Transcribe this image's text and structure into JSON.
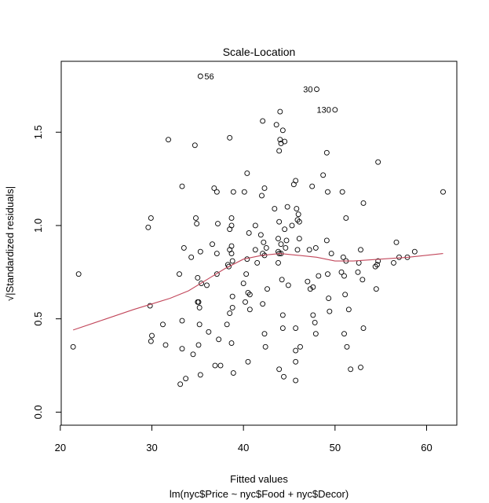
{
  "chart_data": {
    "type": "scatter",
    "title": "Scale-Location",
    "xlabel": "Fitted values",
    "subtitle": "lm(nyc$Price ~ nyc$Food + nyc$Decor)",
    "ylabel": "√|Standardized residuals|",
    "xlim": [
      20.1,
      63.3
    ],
    "ylim": [
      -0.07,
      1.88
    ],
    "x_ticks": [
      20,
      30,
      40,
      50,
      60
    ],
    "y_ticks": [
      0.0,
      0.5,
      1.0,
      1.5
    ],
    "x_tick_labels": [
      "20",
      "30",
      "40",
      "50",
      "60"
    ],
    "y_tick_labels": [
      "0.0",
      "0.5",
      "1.0",
      "1.5"
    ],
    "grid": false,
    "colors": {
      "points": "#000000",
      "smooth": "#c2475b",
      "frame": "#000000"
    },
    "labeled_points": [
      {
        "label": "56",
        "x": 35.3,
        "y": 1.8
      },
      {
        "label": "30",
        "x": 48.0,
        "y": 1.73
      },
      {
        "label": "130",
        "x": 50.0,
        "y": 1.62
      }
    ],
    "points": [
      [
        21.4,
        0.35
      ],
      [
        22.0,
        0.74
      ],
      [
        29.6,
        0.99
      ],
      [
        29.9,
        1.04
      ],
      [
        29.8,
        0.57
      ],
      [
        29.9,
        0.38
      ],
      [
        30.0,
        0.41
      ],
      [
        31.2,
        0.47
      ],
      [
        31.5,
        0.36
      ],
      [
        31.8,
        1.46
      ],
      [
        33.0,
        0.74
      ],
      [
        33.1,
        0.15
      ],
      [
        33.3,
        1.21
      ],
      [
        33.3,
        0.49
      ],
      [
        33.5,
        0.88
      ],
      [
        33.3,
        0.34
      ],
      [
        33.7,
        0.18
      ],
      [
        34.3,
        0.83
      ],
      [
        34.5,
        0.31
      ],
      [
        34.7,
        1.43
      ],
      [
        34.8,
        1.04
      ],
      [
        34.9,
        1.01
      ],
      [
        35.0,
        0.72
      ],
      [
        35.0,
        0.59
      ],
      [
        35.1,
        0.59
      ],
      [
        35.2,
        0.56
      ],
      [
        35.2,
        0.47
      ],
      [
        35.1,
        0.36
      ],
      [
        35.3,
        0.2
      ],
      [
        35.3,
        0.86
      ],
      [
        35.4,
        0.69
      ],
      [
        36.0,
        0.68
      ],
      [
        36.2,
        0.43
      ],
      [
        36.6,
        0.9
      ],
      [
        36.8,
        1.2
      ],
      [
        36.9,
        0.25
      ],
      [
        37.1,
        1.18
      ],
      [
        37.2,
        1.01
      ],
      [
        37.1,
        0.85
      ],
      [
        37.1,
        0.74
      ],
      [
        37.3,
        0.39
      ],
      [
        37.5,
        0.25
      ],
      [
        38.2,
        0.47
      ],
      [
        38.3,
        0.79
      ],
      [
        38.4,
        0.78
      ],
      [
        38.5,
        0.98
      ],
      [
        38.5,
        0.87
      ],
      [
        38.5,
        0.53
      ],
      [
        38.5,
        1.47
      ],
      [
        38.7,
        0.89
      ],
      [
        38.7,
        0.85
      ],
      [
        38.7,
        1.04
      ],
      [
        38.7,
        1.0
      ],
      [
        38.8,
        0.81
      ],
      [
        38.8,
        0.62
      ],
      [
        38.8,
        0.56
      ],
      [
        38.7,
        0.37
      ],
      [
        38.9,
        1.18
      ],
      [
        38.9,
        0.21
      ],
      [
        40.0,
        0.69
      ],
      [
        40.2,
        0.59
      ],
      [
        40.1,
        1.18
      ],
      [
        40.3,
        0.74
      ],
      [
        40.4,
        1.28
      ],
      [
        40.4,
        0.82
      ],
      [
        40.5,
        0.64
      ],
      [
        40.6,
        0.96
      ],
      [
        40.5,
        0.27
      ],
      [
        40.7,
        0.55
      ],
      [
        40.7,
        0.63
      ],
      [
        41.3,
        1.0
      ],
      [
        41.3,
        0.87
      ],
      [
        41.5,
        0.8
      ],
      [
        41.9,
        0.95
      ],
      [
        42.0,
        1.16
      ],
      [
        42.1,
        0.85
      ],
      [
        42.1,
        1.56
      ],
      [
        42.1,
        0.58
      ],
      [
        42.2,
        0.91
      ],
      [
        42.3,
        1.2
      ],
      [
        42.3,
        0.84
      ],
      [
        42.3,
        0.42
      ],
      [
        42.4,
        0.35
      ],
      [
        42.5,
        0.88
      ],
      [
        42.6,
        0.66
      ],
      [
        43.4,
        1.09
      ],
      [
        43.6,
        1.54
      ],
      [
        43.8,
        0.93
      ],
      [
        43.8,
        0.86
      ],
      [
        43.8,
        0.8
      ],
      [
        43.9,
        1.4
      ],
      [
        43.9,
        1.02
      ],
      [
        43.9,
        0.85
      ],
      [
        43.9,
        0.23
      ],
      [
        44.0,
        1.46
      ],
      [
        44.0,
        1.61
      ],
      [
        44.1,
        1.44
      ],
      [
        44.1,
        0.9
      ],
      [
        44.1,
        0.85
      ],
      [
        44.2,
        0.71
      ],
      [
        44.3,
        1.51
      ],
      [
        44.3,
        0.52
      ],
      [
        44.3,
        0.45
      ],
      [
        44.4,
        0.19
      ],
      [
        44.5,
        1.45
      ],
      [
        44.5,
        0.98
      ],
      [
        44.6,
        0.88
      ],
      [
        44.7,
        0.92
      ],
      [
        44.8,
        1.1
      ],
      [
        44.9,
        0.68
      ],
      [
        45.3,
        1.0
      ],
      [
        45.5,
        1.22
      ],
      [
        45.7,
        1.24
      ],
      [
        45.7,
        0.45
      ],
      [
        45.7,
        0.33
      ],
      [
        45.7,
        0.27
      ],
      [
        45.7,
        0.17
      ],
      [
        45.8,
        1.09
      ],
      [
        45.9,
        0.87
      ],
      [
        45.9,
        1.03
      ],
      [
        46.0,
        1.06
      ],
      [
        46.1,
        1.02
      ],
      [
        46.1,
        0.93
      ],
      [
        46.2,
        0.35
      ],
      [
        47.0,
        0.7
      ],
      [
        47.2,
        0.87
      ],
      [
        47.3,
        0.66
      ],
      [
        47.5,
        1.21
      ],
      [
        47.6,
        0.67
      ],
      [
        47.6,
        0.52
      ],
      [
        47.8,
        0.48
      ],
      [
        47.9,
        0.42
      ],
      [
        47.9,
        0.88
      ],
      [
        48.2,
        0.73
      ],
      [
        48.7,
        1.27
      ],
      [
        49.1,
        1.39
      ],
      [
        49.1,
        0.92
      ],
      [
        49.2,
        1.18
      ],
      [
        49.2,
        0.74
      ],
      [
        49.3,
        0.61
      ],
      [
        49.4,
        0.54
      ],
      [
        49.6,
        0.85
      ],
      [
        50.7,
        0.75
      ],
      [
        50.8,
        1.18
      ],
      [
        50.9,
        0.83
      ],
      [
        51.0,
        0.73
      ],
      [
        51.0,
        0.42
      ],
      [
        51.1,
        0.63
      ],
      [
        51.2,
        0.81
      ],
      [
        51.2,
        1.04
      ],
      [
        51.3,
        0.35
      ],
      [
        51.5,
        0.55
      ],
      [
        51.7,
        0.23
      ],
      [
        52.5,
        0.75
      ],
      [
        52.6,
        0.8
      ],
      [
        52.8,
        0.24
      ],
      [
        52.8,
        0.87
      ],
      [
        53.0,
        0.71
      ],
      [
        53.1,
        1.12
      ],
      [
        53.1,
        0.45
      ],
      [
        54.4,
        0.78
      ],
      [
        54.5,
        0.66
      ],
      [
        54.6,
        0.79
      ],
      [
        54.7,
        1.34
      ],
      [
        54.7,
        0.81
      ],
      [
        56.4,
        0.8
      ],
      [
        56.7,
        0.91
      ],
      [
        57.0,
        0.83
      ],
      [
        57.9,
        0.83
      ],
      [
        58.7,
        0.86
      ],
      [
        61.8,
        1.18
      ]
    ],
    "smooth_line": [
      [
        21.4,
        0.44
      ],
      [
        25,
        0.5
      ],
      [
        28,
        0.55
      ],
      [
        30,
        0.58
      ],
      [
        32,
        0.61
      ],
      [
        34,
        0.65
      ],
      [
        36,
        0.71
      ],
      [
        38,
        0.77
      ],
      [
        40,
        0.82
      ],
      [
        42,
        0.84
      ],
      [
        44,
        0.85
      ],
      [
        46,
        0.84
      ],
      [
        48,
        0.83
      ],
      [
        50,
        0.81
      ],
      [
        52,
        0.81
      ],
      [
        55,
        0.82
      ],
      [
        58,
        0.83
      ],
      [
        61.8,
        0.85
      ]
    ]
  }
}
